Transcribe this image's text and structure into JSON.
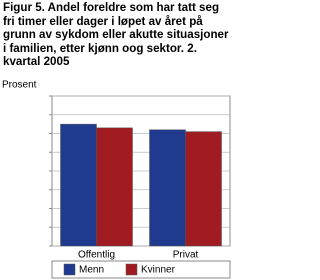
{
  "chart_data": {
    "type": "bar",
    "title": "Figur 5. Andel foreldre som har tatt seg fri timer eller dager i løpet av året på grunn av sykdom eller akutte situasjoner i familien, etter kjønn oog sektor. 2. kvartal 2005",
    "y_label": "Prosent",
    "categories": [
      "Offentlig",
      "Privat"
    ],
    "series": [
      {
        "name": "Menn",
        "color": "#1f3a8f",
        "values": [
          65,
          62
        ]
      },
      {
        "name": "Kvinner",
        "color": "#a01c22",
        "values": [
          63,
          61
        ]
      }
    ],
    "ylim": [
      0,
      80
    ],
    "yticks": [
      0,
      10,
      20,
      30,
      40,
      50,
      60,
      70,
      80
    ],
    "tick_labels": false,
    "grid": true,
    "legend": "bottom"
  }
}
